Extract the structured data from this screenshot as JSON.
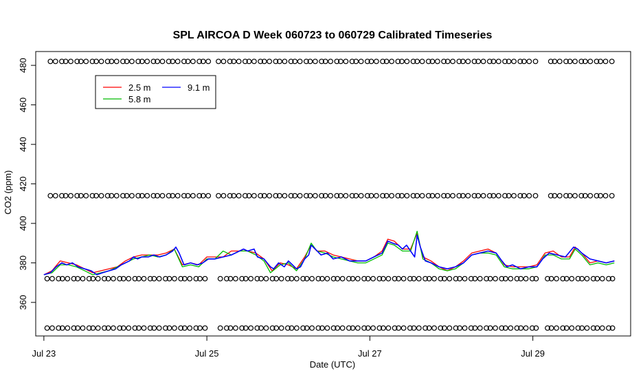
{
  "chart_data": {
    "type": "line",
    "title": "SPL AIRCOA D  Week 060723 to 060729  Calibrated Timeseries",
    "xlabel": "Date (UTC)",
    "ylabel": "CO2 (ppm)",
    "xlim": [
      -0.1,
      7.2
    ],
    "ylim": [
      343,
      487
    ],
    "x_ticks": [
      {
        "value": 0,
        "label": "Jul 23"
      },
      {
        "value": 2,
        "label": "Jul 25"
      },
      {
        "value": 4,
        "label": "Jul 27"
      },
      {
        "value": 6,
        "label": "Jul 29"
      }
    ],
    "y_ticks": [
      {
        "value": 360,
        "label": "360"
      },
      {
        "value": 380,
        "label": "380"
      },
      {
        "value": 400,
        "label": "400"
      },
      {
        "value": 420,
        "label": "420"
      },
      {
        "value": 440,
        "label": "440"
      },
      {
        "value": 460,
        "label": "460"
      },
      {
        "value": 480,
        "label": "480"
      }
    ],
    "legend": {
      "placement": "top-left",
      "entries": [
        {
          "label": "2.5 m",
          "color": "#ff0000"
        },
        {
          "label": "5.8 m",
          "color": "#00bb00"
        },
        {
          "label": "9.1 m",
          "color": "#0000ff"
        }
      ]
    },
    "series": [
      {
        "name": "9.1 m",
        "color": "#0000ff",
        "points": [
          [
            0.0,
            374
          ],
          [
            0.08,
            375
          ],
          [
            0.15,
            378
          ],
          [
            0.22,
            380
          ],
          [
            0.28,
            379
          ],
          [
            0.35,
            380
          ],
          [
            0.42,
            378
          ],
          [
            0.5,
            377
          ],
          [
            0.58,
            376
          ],
          [
            0.65,
            374
          ],
          [
            0.72,
            375
          ],
          [
            0.8,
            376
          ],
          [
            0.88,
            377
          ],
          [
            0.95,
            379
          ],
          [
            1.0,
            380
          ],
          [
            1.05,
            381
          ],
          [
            1.1,
            383
          ],
          [
            1.15,
            382
          ],
          [
            1.2,
            383
          ],
          [
            1.28,
            383
          ],
          [
            1.35,
            384
          ],
          [
            1.42,
            383
          ],
          [
            1.5,
            384
          ],
          [
            1.58,
            386
          ],
          [
            1.62,
            388
          ],
          [
            1.66,
            385
          ],
          [
            1.72,
            379
          ],
          [
            1.8,
            380
          ],
          [
            1.88,
            379
          ],
          [
            1.95,
            380
          ],
          [
            2.02,
            382
          ],
          [
            2.1,
            382
          ],
          [
            2.2,
            383
          ],
          [
            2.3,
            384
          ],
          [
            2.4,
            386
          ],
          [
            2.45,
            387
          ],
          [
            2.5,
            386
          ],
          [
            2.58,
            387
          ],
          [
            2.62,
            383
          ],
          [
            2.7,
            382
          ],
          [
            2.78,
            378
          ],
          [
            2.82,
            377
          ],
          [
            2.88,
            380
          ],
          [
            2.95,
            378
          ],
          [
            3.0,
            381
          ],
          [
            3.05,
            379
          ],
          [
            3.1,
            377
          ],
          [
            3.15,
            378
          ],
          [
            3.2,
            382
          ],
          [
            3.25,
            384
          ],
          [
            3.28,
            389
          ],
          [
            3.33,
            387
          ],
          [
            3.4,
            384
          ],
          [
            3.48,
            385
          ],
          [
            3.55,
            382
          ],
          [
            3.65,
            383
          ],
          [
            3.75,
            381
          ],
          [
            3.85,
            381
          ],
          [
            3.95,
            381
          ],
          [
            4.05,
            383
          ],
          [
            4.15,
            385
          ],
          [
            4.22,
            391
          ],
          [
            4.28,
            390
          ],
          [
            4.35,
            389
          ],
          [
            4.4,
            387
          ],
          [
            4.45,
            389
          ],
          [
            4.5,
            386
          ],
          [
            4.55,
            383
          ],
          [
            4.58,
            394
          ],
          [
            4.62,
            388
          ],
          [
            4.68,
            381
          ],
          [
            4.75,
            380
          ],
          [
            4.85,
            378
          ],
          [
            4.95,
            377
          ],
          [
            5.05,
            378
          ],
          [
            5.15,
            380
          ],
          [
            5.25,
            384
          ],
          [
            5.35,
            385
          ],
          [
            5.45,
            386
          ],
          [
            5.55,
            385
          ],
          [
            5.62,
            381
          ],
          [
            5.68,
            378
          ],
          [
            5.75,
            379
          ],
          [
            5.85,
            377
          ],
          [
            5.95,
            378
          ],
          [
            6.05,
            378
          ],
          [
            6.12,
            382
          ],
          [
            6.2,
            385
          ],
          [
            6.3,
            384
          ],
          [
            6.4,
            383
          ],
          [
            6.5,
            388
          ],
          [
            6.55,
            387
          ],
          [
            6.6,
            385
          ],
          [
            6.7,
            382
          ],
          [
            6.8,
            381
          ],
          [
            6.9,
            380
          ],
          [
            7.0,
            381
          ]
        ]
      },
      {
        "name": "2.5 m",
        "color": "#ff0000",
        "points": [
          [
            0.0,
            374
          ],
          [
            0.1,
            376
          ],
          [
            0.2,
            381
          ],
          [
            0.3,
            380
          ],
          [
            0.4,
            379
          ],
          [
            0.5,
            377
          ],
          [
            0.6,
            375
          ],
          [
            0.7,
            376
          ],
          [
            0.8,
            377
          ],
          [
            0.9,
            378
          ],
          [
            1.0,
            381
          ],
          [
            1.1,
            383
          ],
          [
            1.2,
            384
          ],
          [
            1.3,
            384
          ],
          [
            1.4,
            384
          ],
          [
            1.5,
            385
          ],
          [
            1.6,
            387
          ],
          [
            1.7,
            379
          ],
          [
            1.8,
            380
          ],
          [
            1.9,
            379
          ],
          [
            2.0,
            383
          ],
          [
            2.1,
            383
          ],
          [
            2.2,
            383
          ],
          [
            2.3,
            386
          ],
          [
            2.4,
            386
          ],
          [
            2.5,
            386
          ],
          [
            2.6,
            385
          ],
          [
            2.7,
            382
          ],
          [
            2.8,
            376
          ],
          [
            2.9,
            380
          ],
          [
            3.0,
            379
          ],
          [
            3.1,
            377
          ],
          [
            3.2,
            383
          ],
          [
            3.28,
            389
          ],
          [
            3.35,
            386
          ],
          [
            3.45,
            386
          ],
          [
            3.55,
            384
          ],
          [
            3.65,
            383
          ],
          [
            3.75,
            382
          ],
          [
            3.85,
            381
          ],
          [
            3.95,
            381
          ],
          [
            4.05,
            383
          ],
          [
            4.15,
            386
          ],
          [
            4.22,
            392
          ],
          [
            4.3,
            391
          ],
          [
            4.4,
            387
          ],
          [
            4.5,
            387
          ],
          [
            4.58,
            395
          ],
          [
            4.65,
            383
          ],
          [
            4.75,
            381
          ],
          [
            4.85,
            378
          ],
          [
            4.95,
            376
          ],
          [
            5.05,
            378
          ],
          [
            5.15,
            381
          ],
          [
            5.25,
            385
          ],
          [
            5.35,
            386
          ],
          [
            5.45,
            387
          ],
          [
            5.55,
            385
          ],
          [
            5.65,
            379
          ],
          [
            5.75,
            378
          ],
          [
            5.85,
            378
          ],
          [
            5.95,
            378
          ],
          [
            6.05,
            379
          ],
          [
            6.15,
            385
          ],
          [
            6.25,
            386
          ],
          [
            6.35,
            383
          ],
          [
            6.45,
            383
          ],
          [
            6.52,
            388
          ],
          [
            6.6,
            385
          ],
          [
            6.7,
            380
          ],
          [
            6.8,
            381
          ],
          [
            6.9,
            380
          ],
          [
            7.0,
            381
          ]
        ]
      },
      {
        "name": "5.8 m",
        "color": "#00bb00",
        "points": [
          [
            0.0,
            374
          ],
          [
            0.1,
            375
          ],
          [
            0.2,
            379
          ],
          [
            0.3,
            379
          ],
          [
            0.4,
            378
          ],
          [
            0.5,
            376
          ],
          [
            0.6,
            374
          ],
          [
            0.7,
            375
          ],
          [
            0.8,
            376
          ],
          [
            0.9,
            378
          ],
          [
            1.0,
            380
          ],
          [
            1.1,
            382
          ],
          [
            1.2,
            383
          ],
          [
            1.3,
            384
          ],
          [
            1.4,
            383
          ],
          [
            1.5,
            384
          ],
          [
            1.6,
            387
          ],
          [
            1.7,
            378
          ],
          [
            1.8,
            379
          ],
          [
            1.9,
            378
          ],
          [
            2.0,
            382
          ],
          [
            2.1,
            382
          ],
          [
            2.2,
            386
          ],
          [
            2.3,
            384
          ],
          [
            2.4,
            386
          ],
          [
            2.5,
            386
          ],
          [
            2.6,
            384
          ],
          [
            2.7,
            381
          ],
          [
            2.78,
            375
          ],
          [
            2.9,
            379
          ],
          [
            3.0,
            380
          ],
          [
            3.1,
            376
          ],
          [
            3.2,
            382
          ],
          [
            3.28,
            390
          ],
          [
            3.35,
            386
          ],
          [
            3.45,
            385
          ],
          [
            3.55,
            383
          ],
          [
            3.65,
            382
          ],
          [
            3.75,
            381
          ],
          [
            3.85,
            380
          ],
          [
            3.95,
            380
          ],
          [
            4.05,
            382
          ],
          [
            4.15,
            384
          ],
          [
            4.22,
            390
          ],
          [
            4.3,
            389
          ],
          [
            4.4,
            386
          ],
          [
            4.5,
            386
          ],
          [
            4.58,
            396
          ],
          [
            4.65,
            382
          ],
          [
            4.75,
            380
          ],
          [
            4.85,
            377
          ],
          [
            4.95,
            376
          ],
          [
            5.05,
            377
          ],
          [
            5.15,
            380
          ],
          [
            5.25,
            384
          ],
          [
            5.35,
            385
          ],
          [
            5.45,
            385
          ],
          [
            5.55,
            384
          ],
          [
            5.65,
            378
          ],
          [
            5.75,
            377
          ],
          [
            5.85,
            377
          ],
          [
            5.95,
            377
          ],
          [
            6.05,
            378
          ],
          [
            6.15,
            384
          ],
          [
            6.25,
            384
          ],
          [
            6.35,
            382
          ],
          [
            6.45,
            382
          ],
          [
            6.52,
            387
          ],
          [
            6.6,
            384
          ],
          [
            6.7,
            379
          ],
          [
            6.8,
            380
          ],
          [
            6.9,
            379
          ],
          [
            7.0,
            380
          ]
        ]
      }
    ],
    "marker_rows": [
      {
        "y": 482,
        "x_start": 0.08,
        "x_end": 6.98,
        "gaps": [
          [
            2.02,
            2.12
          ],
          [
            6.05,
            6.15
          ]
        ]
      },
      {
        "y": 414,
        "x_start": 0.08,
        "x_end": 6.98,
        "gaps": [
          [
            2.02,
            2.12
          ],
          [
            6.05,
            6.15
          ]
        ]
      },
      {
        "y": 372,
        "x_start": 0.04,
        "x_end": 6.98,
        "gaps": [
          [
            2.02,
            2.12
          ],
          [
            6.05,
            6.15
          ]
        ]
      },
      {
        "y": 347,
        "x_start": 0.04,
        "x_end": 6.98,
        "gaps": [
          [
            2.02,
            2.12
          ],
          [
            6.05,
            6.15
          ]
        ]
      }
    ]
  }
}
